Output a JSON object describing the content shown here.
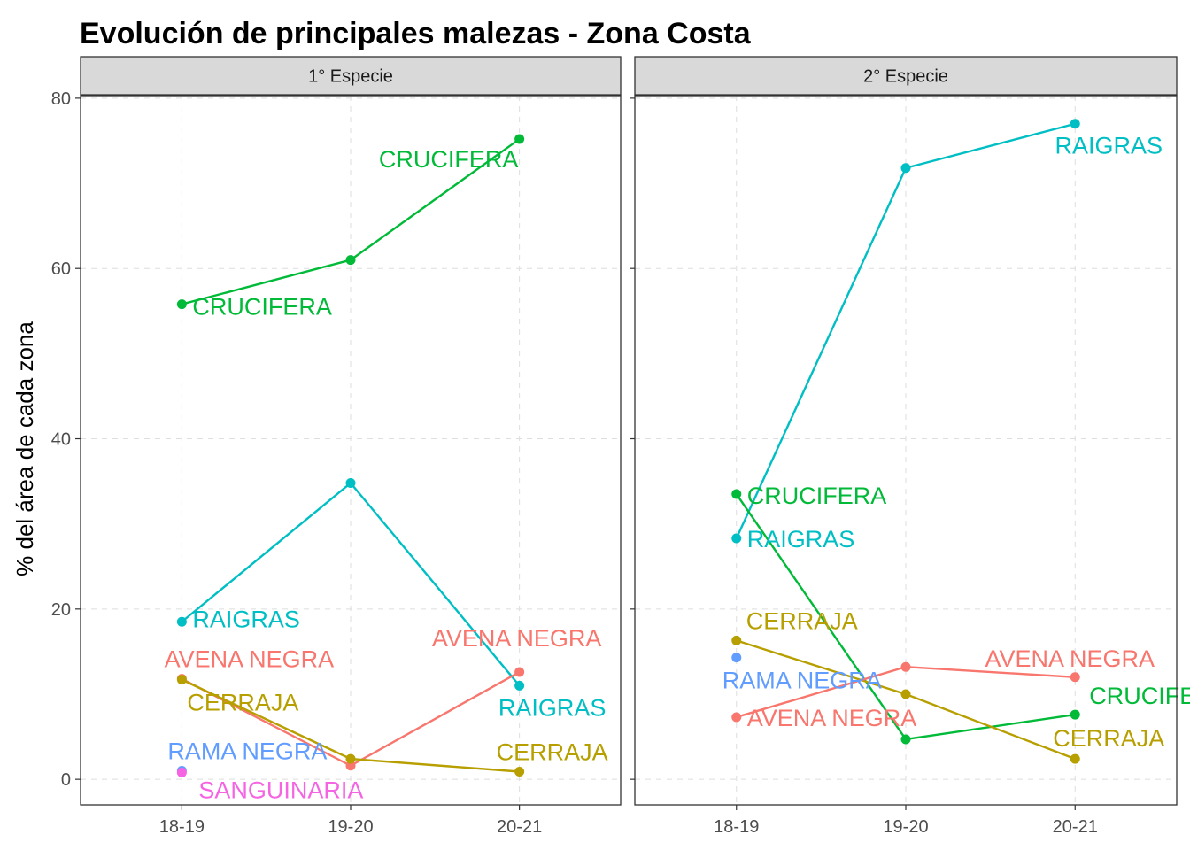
{
  "chart_data": {
    "type": "line",
    "title": "Evolución de principales malezas -  Zona Costa",
    "xlabel": "",
    "ylabel": "% del área de cada zona",
    "categories": [
      "18-19",
      "19-20",
      "20-21"
    ],
    "ylim": [
      -3,
      80.3
    ],
    "yticks": [
      0,
      20,
      40,
      60,
      80
    ],
    "grid": true,
    "legend": "none",
    "colors": {
      "AVENA NEGRA": "#F8766D",
      "CERRAJA": "#B79F00",
      "CRUCIFERA": "#00BA38",
      "RAIGRAS": "#00BFC4",
      "RAMA NEGRA": "#619CFF",
      "SANGUINARIA": "#F564E3"
    },
    "panels": [
      {
        "strip": "1° Especie",
        "series": [
          {
            "name": "CRUCIFERA",
            "values": [
              55.8,
              61.0,
              75.2
            ]
          },
          {
            "name": "RAIGRAS",
            "values": [
              18.5,
              34.8,
              11.0
            ]
          },
          {
            "name": "AVENA NEGRA",
            "values": [
              11.8,
              1.6,
              12.6
            ]
          },
          {
            "name": "CERRAJA",
            "values": [
              11.7,
              2.4,
              0.9
            ]
          },
          {
            "name": "RAMA NEGRA",
            "values": [
              1.0,
              null,
              null
            ]
          },
          {
            "name": "SANGUINARIA",
            "values": [
              0.8,
              null,
              null
            ]
          }
        ],
        "labels": [
          {
            "text": "CRUCIFERA",
            "series": "CRUCIFERA",
            "at": 0
          },
          {
            "text": "CRUCIFERA",
            "series": "CRUCIFERA",
            "at": 2
          },
          {
            "text": "RAIGRAS",
            "series": "RAIGRAS",
            "at": 0
          },
          {
            "text": "RAIGRAS",
            "series": "RAIGRAS",
            "at": 2
          },
          {
            "text": "AVENA NEGRA",
            "series": "AVENA NEGRA",
            "at": 0
          },
          {
            "text": "AVENA NEGRA",
            "series": "AVENA NEGRA",
            "at": 2
          },
          {
            "text": "CERRAJA",
            "series": "CERRAJA",
            "at": 0
          },
          {
            "text": "CERRAJA",
            "series": "CERRAJA",
            "at": 2
          },
          {
            "text": "RAMA NEGRA",
            "series": "RAMA NEGRA",
            "at": 0
          },
          {
            "text": "SANGUINARIA",
            "series": "SANGUINARIA",
            "at": 0
          }
        ]
      },
      {
        "strip": "2° Especie",
        "series": [
          {
            "name": "RAIGRAS",
            "values": [
              28.3,
              71.8,
              77.0
            ]
          },
          {
            "name": "CRUCIFERA",
            "values": [
              33.5,
              4.7,
              7.6
            ]
          },
          {
            "name": "CERRAJA",
            "values": [
              16.3,
              10.0,
              2.4
            ]
          },
          {
            "name": "AVENA NEGRA",
            "values": [
              7.3,
              13.2,
              12.0
            ]
          },
          {
            "name": "RAMA NEGRA",
            "values": [
              14.3,
              null,
              null
            ]
          }
        ],
        "labels": [
          {
            "text": "RAIGRAS",
            "series": "RAIGRAS",
            "at": 0
          },
          {
            "text": "RAIGRAS",
            "series": "RAIGRAS",
            "at": 2
          },
          {
            "text": "CRUCIFERA",
            "series": "CRUCIFERA",
            "at": 0
          },
          {
            "text": "CRUCIFERA",
            "series": "CRUCIFERA",
            "at": 2
          },
          {
            "text": "CERRAJA",
            "series": "CERRAJA",
            "at": 0
          },
          {
            "text": "CERRAJA",
            "series": "CERRAJA",
            "at": 2
          },
          {
            "text": "AVENA NEGRA",
            "series": "AVENA NEGRA",
            "at": 0
          },
          {
            "text": "AVENA NEGRA",
            "series": "AVENA NEGRA",
            "at": 2
          },
          {
            "text": "RAMA NEGRA",
            "series": "RAMA NEGRA",
            "at": 0
          }
        ]
      }
    ]
  }
}
